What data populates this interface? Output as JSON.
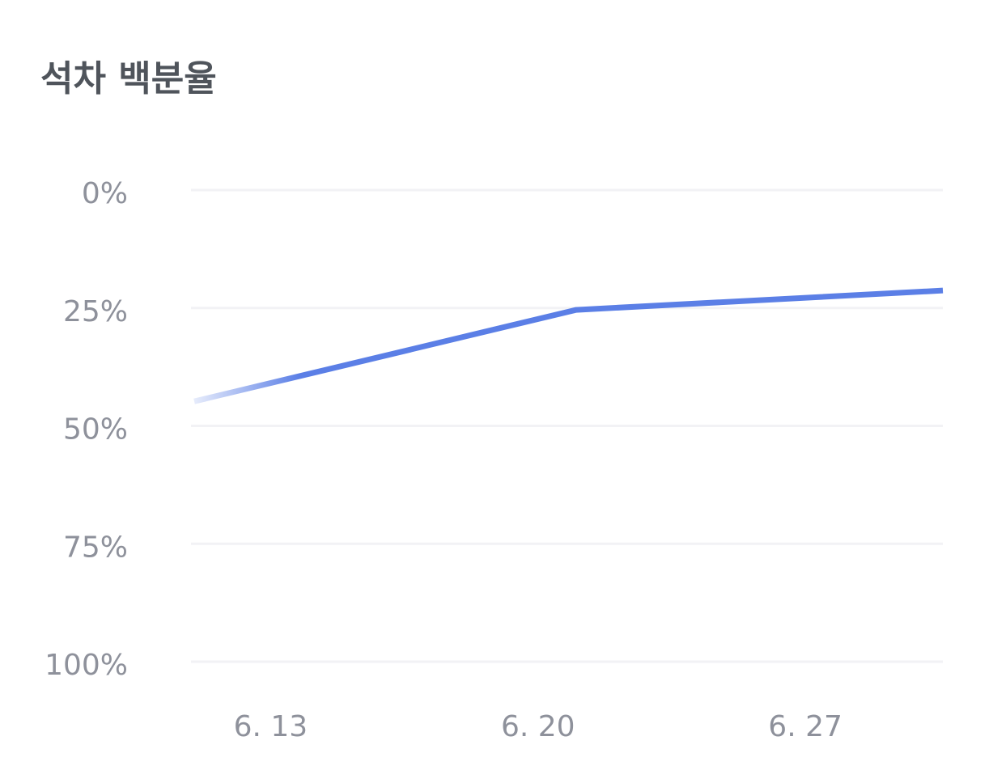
{
  "chart_data": {
    "type": "line",
    "title": "석차 백분율",
    "x": [
      11,
      21,
      30.6
    ],
    "xlim": [
      11,
      30.6
    ],
    "xticks": [
      {
        "value": 13,
        "label": "6. 13"
      },
      {
        "value": 20,
        "label": "6. 20"
      },
      {
        "value": 27,
        "label": "6. 27"
      }
    ],
    "series": [
      {
        "color": "#5b7fe6",
        "values": [
          44.8,
          25.4,
          21.3
        ]
      }
    ],
    "ylim": [
      100,
      0
    ],
    "yticks": [
      {
        "value": 0,
        "label": "0%"
      },
      {
        "value": 25,
        "label": "25%"
      },
      {
        "value": 50,
        "label": "50%"
      },
      {
        "value": 75,
        "label": "75%"
      },
      {
        "value": 100,
        "label": "100%"
      }
    ],
    "grid": true
  }
}
